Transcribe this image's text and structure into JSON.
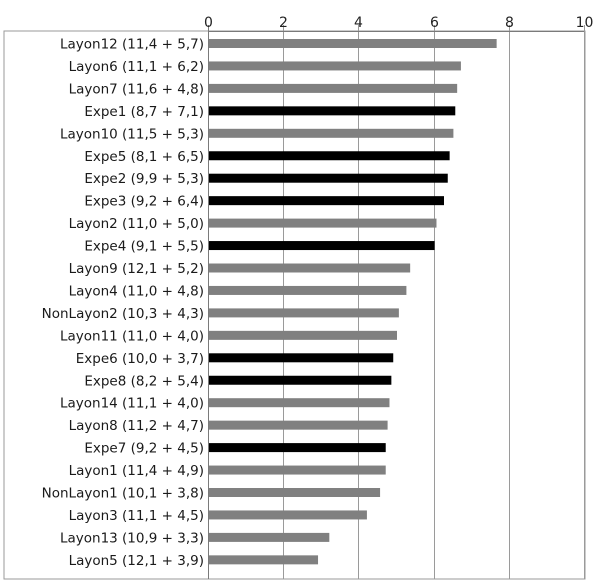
{
  "chart_data": {
    "type": "bar",
    "orientation": "horizontal",
    "title": "",
    "xlabel": "",
    "ylabel": "",
    "xlim": [
      0,
      10
    ],
    "x_ticks": [
      0,
      2,
      4,
      6,
      8,
      10
    ],
    "x_tick_labels": [
      "0",
      "2",
      "4",
      "6",
      "8",
      "10"
    ],
    "x_axis_position": "top",
    "grid": "vertical major gridlines",
    "legend": "none",
    "colors": {
      "Layon": "#808080",
      "NonLayon": "#808080",
      "Expe": "#000000",
      "grid": "#9a9a9a",
      "frame": "#9a9a9a"
    },
    "categories": [
      "Layon12 (11,4 + 5,7)",
      "Layon6 (11,1 + 6,2)",
      "Layon7 (11,6 + 4,8)",
      "Expe1 (8,7 + 7,1)",
      "Layon10 (11,5 + 5,3)",
      "Expe5 (8,1 + 6,5)",
      "Expe2 (9,9 + 5,3)",
      "Expe3 (9,2 + 6,4)",
      "Layon2 (11,0 + 5,0)",
      "Expe4 (9,1 + 5,5)",
      "Layon9 (12,1 + 5,2)",
      "Layon4 (11,0 + 4,8)",
      "NonLayon2 (10,3 + 4,3)",
      "Layon11 (11,0 + 4,0)",
      "Expe6 (10,0 + 3,7)",
      "Expe8 (8,2 + 5,4)",
      "Layon14 (11,1 + 4,0)",
      "Layon8 (11,2 + 4,7)",
      "Expe7 (9,2 + 4,5)",
      "Layon1 (11,4 + 4,9)",
      "NonLayon1 (10,1 + 3,8)",
      "Layon3 (11,1 + 4,5)",
      "Layon13 (10,9 + 3,3)",
      "Layon5 (12,1 + 3,9)"
    ],
    "values": [
      7.65,
      6.7,
      6.6,
      6.55,
      6.5,
      6.4,
      6.35,
      6.25,
      6.05,
      6.0,
      5.35,
      5.25,
      5.05,
      5.0,
      4.9,
      4.85,
      4.8,
      4.75,
      4.7,
      4.7,
      4.55,
      4.2,
      3.2,
      2.9
    ],
    "groups": [
      "Layon",
      "Layon",
      "Layon",
      "Expe",
      "Layon",
      "Expe",
      "Expe",
      "Expe",
      "Layon",
      "Expe",
      "Layon",
      "Layon",
      "NonLayon",
      "Layon",
      "Expe",
      "Expe",
      "Layon",
      "Layon",
      "Expe",
      "Layon",
      "NonLayon",
      "Layon",
      "Layon",
      "Layon"
    ]
  }
}
